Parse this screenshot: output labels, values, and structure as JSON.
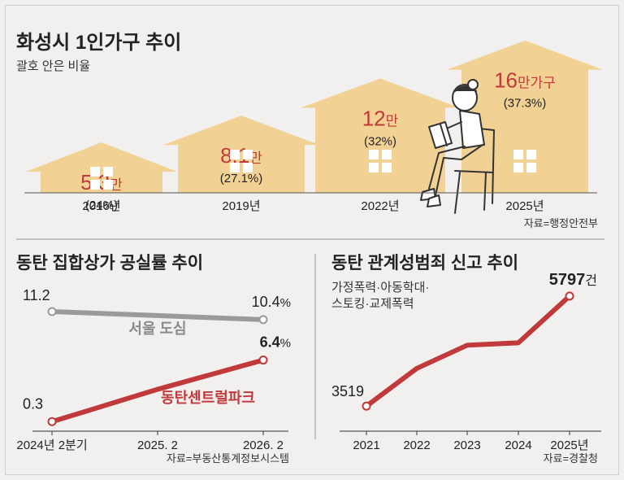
{
  "top": {
    "title": "화성시 1인가구 추이",
    "subtitle": "괄호 안은 비율",
    "source": "자료=행정안전부"
  },
  "bottom_left": {
    "title": "동탄 집합상가 공실률 추이",
    "source": "자료=부동산통계정보시스템"
  },
  "bottom_right": {
    "title": "동탄 관계성범죄 신고 추이",
    "subtitle_line1": "가정폭력·아동학대·",
    "subtitle_line2": "스토킹·교제폭력",
    "source": "자료=경찰청"
  },
  "colors": {
    "background": "#f1f0ef",
    "house": "#f2d294",
    "window": "#ffffff",
    "accent_red": "#c0393b",
    "gray_line": "#9a9a9a",
    "text": "#222222"
  },
  "chart_data": [
    {
      "type": "bar",
      "title": "화성시 1인가구 추이",
      "categories": [
        "2016년",
        "2019년",
        "2022년",
        "2025년"
      ],
      "values": [
        5.3,
        8.1,
        12,
        16
      ],
      "unit_labels": [
        "만",
        "만",
        "만",
        "만가구"
      ],
      "value_labels": [
        "5.3",
        "8.1",
        "12",
        "16"
      ],
      "ratio_labels": [
        "(24%)",
        "(27.1%)",
        "(32%)",
        "(37.3%)"
      ],
      "ratios": [
        24,
        27.1,
        32,
        37.3
      ],
      "ylim": [
        0,
        17
      ]
    },
    {
      "type": "line",
      "title": "동탄 집합상가 공실률 추이",
      "x": [
        "2024년 2분기",
        "2025. 2",
        "2026. 2"
      ],
      "ylim": [
        0,
        12
      ],
      "series": [
        {
          "name": "서울 도심",
          "values": [
            11.2,
            10.8,
            10.4
          ],
          "labels": [
            "11.2",
            "",
            "10.4"
          ],
          "label_units": [
            "",
            "",
            "%"
          ],
          "color": "#9a9a9a"
        },
        {
          "name": "동탄센트럴파크",
          "values": [
            0.3,
            3.5,
            6.4
          ],
          "labels": [
            "0.3",
            "",
            "6.4"
          ],
          "label_units": [
            "",
            "",
            "%"
          ],
          "color": "#c0393b"
        }
      ]
    },
    {
      "type": "line",
      "title": "동탄 관계성범죄 신고 추이",
      "x": [
        "2021",
        "2022",
        "2023",
        "2024",
        "2025년"
      ],
      "ylim": [
        3000,
        6200
      ],
      "series": [
        {
          "values": [
            3519,
            4300,
            4780,
            4830,
            5797
          ],
          "labels": [
            "3519",
            "",
            "",
            "",
            "5797"
          ],
          "label_units": [
            "",
            "",
            "",
            "",
            "건"
          ],
          "color": "#c0393b"
        }
      ]
    }
  ]
}
